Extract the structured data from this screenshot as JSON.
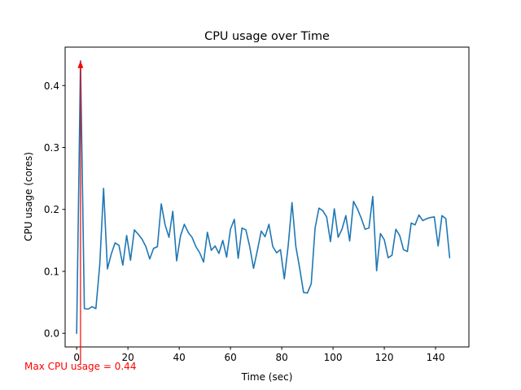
{
  "chart_data": {
    "type": "line",
    "title": "CPU usage over Time",
    "xlabel": "Time (sec)",
    "ylabel": "CPU usage (cores)",
    "xlim": [
      -4.5,
      153
    ],
    "ylim": [
      -0.022,
      0.462
    ],
    "xticks": [
      0,
      20,
      40,
      60,
      80,
      100,
      120,
      140
    ],
    "yticks": [
      0.0,
      0.1,
      0.2,
      0.3,
      0.4
    ],
    "ytick_labels": [
      "0.0",
      "0.1",
      "0.2",
      "0.3",
      "0.4"
    ],
    "series": [
      {
        "name": "CPU usage",
        "color": "#1f77b4",
        "x": [
          0,
          1.5,
          3,
          4.5,
          6,
          7.5,
          9,
          10.5,
          12,
          13.5,
          15,
          16.5,
          18,
          19.5,
          21,
          22.5,
          24,
          25.5,
          27,
          28.5,
          30,
          31.5,
          33,
          34.5,
          36,
          37.5,
          39,
          40.5,
          42,
          43.5,
          45,
          46.5,
          48,
          49.5,
          51,
          52.5,
          54,
          55.5,
          57,
          58.5,
          60,
          61.5,
          63,
          64.5,
          66,
          67.5,
          69,
          70.5,
          72,
          73.5,
          75,
          76.5,
          78,
          79.5,
          81,
          82.5,
          84,
          85.5,
          87,
          88.5,
          90,
          91.5,
          93,
          94.5,
          96,
          97.5,
          99,
          100.5,
          102,
          103.5,
          105,
          106.5,
          108,
          109.5,
          111,
          112.5,
          114,
          115.5,
          117,
          118.5,
          120,
          121.5,
          123,
          124.5,
          126,
          127.5,
          129,
          130.5,
          132,
          133.5,
          135,
          136.5,
          138,
          139.5,
          141,
          142.5,
          144,
          145.5
        ],
        "y": [
          0.0,
          0.44,
          0.04,
          0.039,
          0.043,
          0.04,
          0.11,
          0.234,
          0.104,
          0.128,
          0.146,
          0.142,
          0.11,
          0.158,
          0.118,
          0.167,
          0.16,
          0.152,
          0.14,
          0.12,
          0.137,
          0.14,
          0.209,
          0.175,
          0.155,
          0.197,
          0.117,
          0.157,
          0.176,
          0.163,
          0.155,
          0.14,
          0.13,
          0.115,
          0.163,
          0.134,
          0.141,
          0.129,
          0.15,
          0.123,
          0.168,
          0.184,
          0.121,
          0.17,
          0.167,
          0.14,
          0.105,
          0.134,
          0.165,
          0.156,
          0.176,
          0.14,
          0.13,
          0.135,
          0.088,
          0.141,
          0.211,
          0.14,
          0.105,
          0.066,
          0.065,
          0.08,
          0.17,
          0.202,
          0.198,
          0.188,
          0.148,
          0.201,
          0.155,
          0.168,
          0.19,
          0.149,
          0.213,
          0.201,
          0.186,
          0.168,
          0.17,
          0.221,
          0.101,
          0.161,
          0.151,
          0.122,
          0.126,
          0.168,
          0.158,
          0.135,
          0.132,
          0.178,
          0.175,
          0.191,
          0.182,
          0.185,
          0.187,
          0.188,
          0.141,
          0.19,
          0.185,
          0.122
        ]
      }
    ],
    "annotation": {
      "text": "Max CPU usage = 0.44",
      "color": "#ff0000",
      "point": [
        1.5,
        0.44
      ],
      "text_anchor_point": [
        1.5,
        -0.05
      ]
    }
  }
}
